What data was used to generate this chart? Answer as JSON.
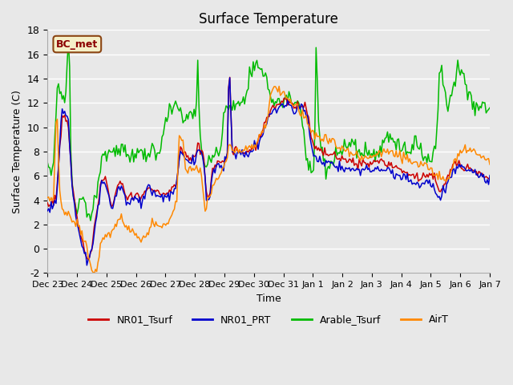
{
  "title": "Surface Temperature",
  "ylabel": "Surface Temperature (C)",
  "xlabel": "Time",
  "ylim": [
    -2,
    18
  ],
  "facecolor": "#e8e8e8",
  "grid_color": "white",
  "annotation_text": "BC_met",
  "annotation_bg": "#f5f0c8",
  "annotation_border": "#8b4513",
  "annotation_text_color": "#8b0000",
  "color_red": "#cc0000",
  "color_blue": "#0000cc",
  "color_green": "#00bb00",
  "color_orange": "#ff8800",
  "xtick_labels": [
    "Dec 23",
    "Dec 24",
    "Dec 25",
    "Dec 26",
    "Dec 27",
    "Dec 28",
    "Dec 29",
    "Dec 30",
    "Dec 31",
    "Jan 1",
    "Jan 2",
    "Jan 3",
    "Jan 4",
    "Jan 5",
    "Jan 6",
    "Jan 7"
  ]
}
